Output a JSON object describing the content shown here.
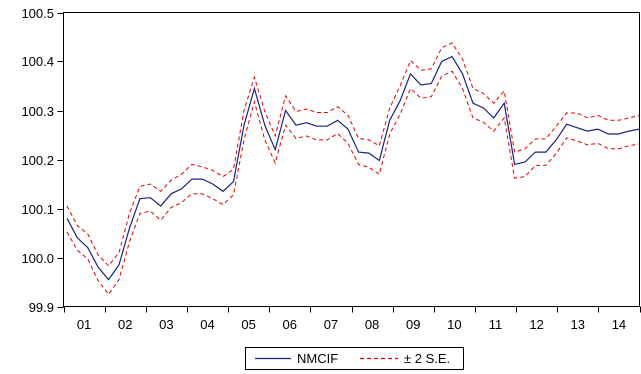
{
  "chart_data": {
    "type": "line",
    "title": "",
    "xlabel": "",
    "ylabel": "",
    "ylim": [
      99.9,
      100.5
    ],
    "y_ticks": [
      "99.9",
      "100.0",
      "100.1",
      "100.2",
      "100.3",
      "100.4",
      "100.5"
    ],
    "x_ticks": [
      "01",
      "02",
      "03",
      "04",
      "05",
      "06",
      "07",
      "08",
      "09",
      "10",
      "11",
      "12",
      "13",
      "14"
    ],
    "grid": false,
    "legend_position": "bottom-center",
    "colors": {
      "forecast": "#1a237e",
      "bands": "#e00000"
    },
    "series": [
      {
        "name": "NMCIF",
        "style": "solid",
        "values": [
          100.08,
          100.04,
          100.02,
          99.98,
          99.955,
          99.985,
          100.06,
          100.12,
          100.122,
          100.105,
          100.13,
          100.14,
          100.16,
          100.16,
          100.15,
          100.135,
          100.155,
          100.27,
          100.345,
          100.27,
          100.22,
          100.3,
          100.27,
          100.275,
          100.268,
          100.268,
          100.28,
          100.262,
          100.215,
          100.213,
          100.198,
          100.28,
          100.32,
          100.375,
          100.352,
          100.355,
          100.4,
          100.41,
          100.375,
          100.315,
          100.305,
          100.285,
          100.315,
          100.19,
          100.195,
          100.215,
          100.215,
          100.24,
          100.272,
          100.265,
          100.258,
          100.262,
          100.252,
          100.252,
          100.258,
          100.262
        ]
      },
      {
        "name": "± 2 S.E.",
        "style": "dashed",
        "bands": {
          "upper": [
            100.105,
            100.065,
            100.048,
            100.005,
            99.983,
            100.01,
            100.09,
            100.145,
            100.15,
            100.135,
            100.158,
            100.17,
            100.19,
            100.185,
            100.178,
            100.165,
            100.18,
            100.3,
            100.368,
            100.298,
            100.248,
            100.33,
            100.298,
            100.303,
            100.296,
            100.296,
            100.308,
            100.29,
            100.243,
            100.24,
            100.228,
            100.305,
            100.35,
            100.402,
            100.382,
            100.385,
            100.428,
            100.438,
            100.405,
            100.345,
            100.335,
            100.315,
            100.34,
            100.215,
            100.222,
            100.242,
            100.242,
            100.268,
            100.295,
            100.295,
            100.285,
            100.29,
            100.28,
            100.28,
            100.285,
            100.29
          ],
          "lower": [
            100.052,
            100.015,
            99.997,
            99.952,
            99.925,
            99.955,
            100.032,
            100.09,
            100.095,
            100.076,
            100.102,
            100.112,
            100.13,
            100.13,
            100.12,
            100.108,
            100.128,
            100.24,
            100.318,
            100.24,
            100.193,
            100.27,
            100.243,
            100.248,
            100.24,
            100.24,
            100.253,
            100.233,
            100.19,
            100.184,
            100.17,
            100.252,
            100.292,
            100.345,
            100.325,
            100.328,
            100.37,
            100.38,
            100.345,
            100.285,
            100.276,
            100.258,
            100.285,
            100.162,
            100.165,
            100.188,
            100.188,
            100.212,
            100.244,
            100.238,
            100.23,
            100.233,
            100.222,
            100.222,
            100.228,
            100.232
          ]
        }
      }
    ]
  }
}
